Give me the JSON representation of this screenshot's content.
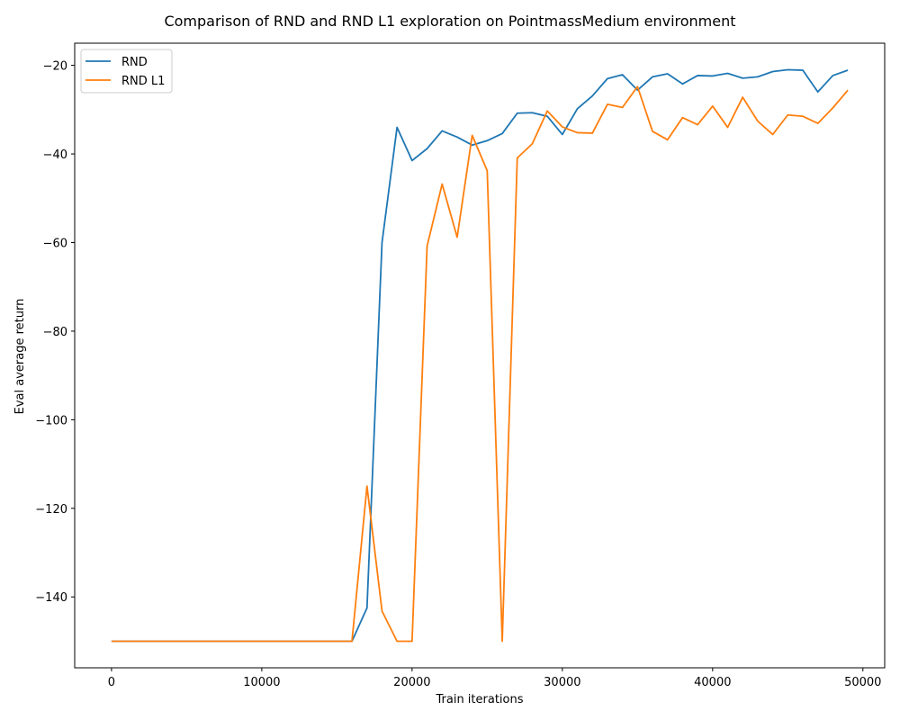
{
  "chart_data": {
    "type": "line",
    "title": "Comparison of RND and RND L1 exploration on PointmassMedium environment",
    "xlabel": "Train iterations",
    "ylabel": "Eval average return",
    "xlim": [
      -2450,
      51450
    ],
    "ylim": [
      -156,
      -15
    ],
    "xticks": [
      0,
      10000,
      20000,
      30000,
      40000,
      50000
    ],
    "yticks": [
      -140,
      -120,
      -100,
      -80,
      -60,
      -40,
      -20
    ],
    "grid": false,
    "legend_position": "top-left",
    "x": [
      0,
      1000,
      2000,
      3000,
      4000,
      5000,
      6000,
      7000,
      8000,
      9000,
      10000,
      11000,
      12000,
      13000,
      14000,
      15000,
      16000,
      17000,
      18000,
      19000,
      20000,
      21000,
      22000,
      23000,
      24000,
      25000,
      26000,
      27000,
      28000,
      29000,
      30000,
      31000,
      32000,
      33000,
      34000,
      35000,
      36000,
      37000,
      38000,
      39000,
      40000,
      41000,
      42000,
      43000,
      44000,
      45000,
      46000,
      47000,
      48000,
      49000
    ],
    "series": [
      {
        "name": "RND",
        "color": "#1f77b4",
        "values": [
          -150,
          -150,
          -150,
          -150,
          -150,
          -150,
          -150,
          -150,
          -150,
          -150,
          -150,
          -150,
          -150,
          -150,
          -150,
          -150,
          -150,
          -142.5,
          -60,
          -34,
          -41.5,
          -38.8,
          -34.8,
          -36.2,
          -38,
          -37,
          -35.4,
          -30.8,
          -30.7,
          -31.5,
          -35.6,
          -29.8,
          -26.9,
          -23,
          -22.1,
          -25.6,
          -22.6,
          -21.9,
          -24.2,
          -22.3,
          -22.4,
          -21.8,
          -22.9,
          -22.6,
          -21.4,
          -21,
          -21.1,
          -26,
          -22.3,
          -21.1
        ]
      },
      {
        "name": "RND L1",
        "color": "#ff7f0e",
        "values": [
          -150,
          -150,
          -150,
          -150,
          -150,
          -150,
          -150,
          -150,
          -150,
          -150,
          -150,
          -150,
          -150,
          -150,
          -150,
          -150,
          -150,
          -115,
          -143.2,
          -150,
          -150,
          -60.8,
          -46.8,
          -58.8,
          -35.8,
          -43.8,
          -150,
          -40.9,
          -37.7,
          -30.3,
          -33.9,
          -35.2,
          -35.3,
          -28.8,
          -29.5,
          -24.8,
          -34.9,
          -36.8,
          -31.8,
          -33.4,
          -29.2,
          -34,
          -27.2,
          -32.6,
          -35.6,
          -31.2,
          -31.5,
          -33.1,
          -29.6,
          -25.6
        ]
      }
    ]
  }
}
